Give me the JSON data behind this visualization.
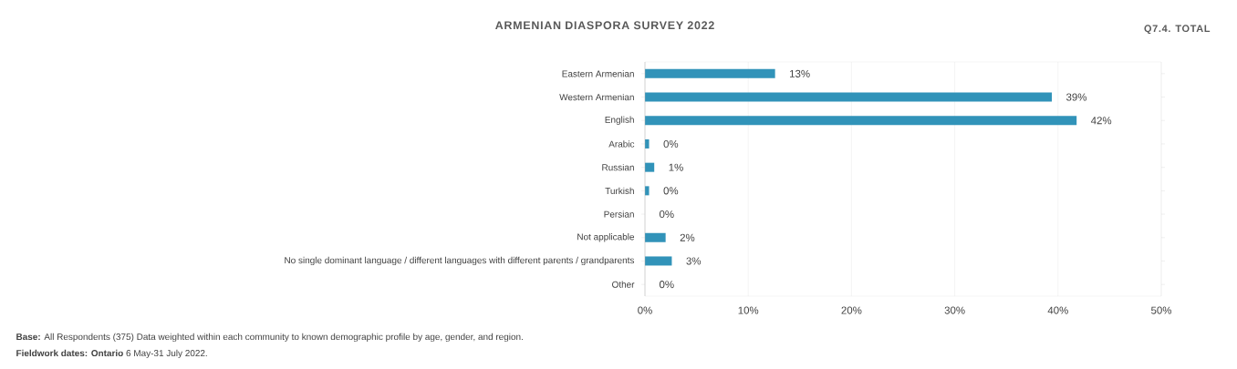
{
  "chart_data": {
    "type": "bar",
    "orientation": "horizontal",
    "title": "ARMENIAN DIASPORA SURVEY 2022",
    "subtitle": "Q7.4. TOTAL",
    "categories": [
      "Eastern Armenian",
      "Western Armenian",
      "English",
      "Arabic",
      "Russian",
      "Turkish",
      "Persian",
      "Not applicable",
      "No single dominant language / different languages with different parents / grandparents",
      "Other"
    ],
    "values": [
      12.6,
      39.4,
      41.8,
      0.4,
      0.9,
      0.4,
      0,
      2.0,
      2.6,
      0
    ],
    "value_labels": [
      "13%",
      "39%",
      "42%",
      "0%",
      "1%",
      "0%",
      "0%",
      "2%",
      "3%",
      "0%"
    ],
    "color": "#3193b9",
    "xlim": [
      0,
      50
    ],
    "xticks": [
      {
        "value": 0,
        "label": "0%"
      },
      {
        "value": 10,
        "label": "10%"
      },
      {
        "value": 20,
        "label": "20%"
      },
      {
        "value": 30,
        "label": "30%"
      },
      {
        "value": 40,
        "label": "40%"
      },
      {
        "value": 50,
        "label": "50%"
      }
    ],
    "grid": "x",
    "annotations": [
      "**Base:** All Respondents (375) Data weighted within each community to known demographic profile by age, gender, and region.",
      "**Fieldwork dates: Ontario** 6 May-31 July 2022."
    ]
  }
}
